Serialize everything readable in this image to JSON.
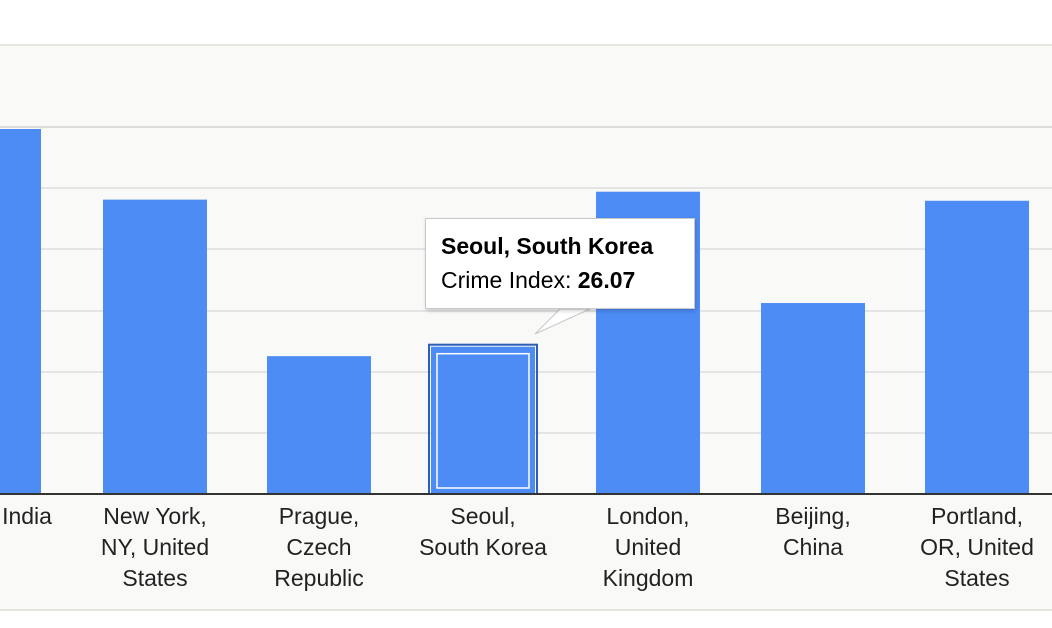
{
  "chart_data": {
    "type": "bar",
    "categories": [
      "India",
      "New York, NY, United States",
      "Prague, Czech Republic",
      "Seoul, South Korea",
      "London, United Kingdom",
      "Beijing, China",
      "Portland, OR, United States"
    ],
    "category_label_lines": [
      [
        "India"
      ],
      [
        "New York,",
        "NY, United",
        "States"
      ],
      [
        "Prague,",
        "Czech",
        "Republic"
      ],
      [
        "Seoul,",
        "South Korea"
      ],
      [
        "London,",
        "United",
        "Kingdom"
      ],
      [
        "Beijing,",
        "China"
      ],
      [
        "Portland,",
        "OR, United",
        "States"
      ]
    ],
    "series": [
      {
        "values": [
          64.6,
          52.1,
          24.4,
          26.07,
          53.5,
          33.8,
          51.9
        ]
      }
    ],
    "ylim": [
      0,
      80
    ],
    "grid": true,
    "bar_color": "#4d8cf5",
    "highlight_index": 3
  },
  "tooltip": {
    "title": "Seoul, South Korea",
    "label": "Crime Index:",
    "value": "26.07"
  }
}
